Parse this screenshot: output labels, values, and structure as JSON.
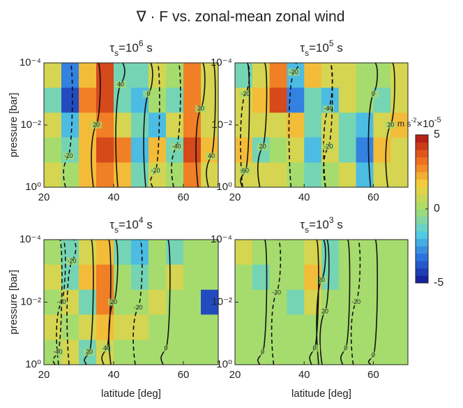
{
  "title": "∇ · F vs. zonal-mean zonal wind",
  "chart_data": [
    {
      "type": "heatmap",
      "title": {
        "symbol": "τ",
        "sub": "s",
        "text": "=10",
        "sup": "6",
        "unit": " s"
      },
      "ylabel": "pressure [bar]",
      "xlim": [
        20,
        70
      ],
      "xticks": [
        20,
        40,
        60
      ],
      "ylim": [
        1,
        0.0001
      ],
      "ylog": true,
      "yticks": [
        {
          "value": 0.0001,
          "label": "10⁻⁴"
        },
        {
          "value": 0.01,
          "label": "10⁻²"
        },
        {
          "value": 1,
          "label": "10⁰"
        }
      ],
      "x_edges": [
        20,
        25,
        30,
        35,
        40,
        45,
        50,
        55,
        60,
        65,
        70
      ],
      "y_edges": [
        0.0001,
        0.00063,
        0.004,
        0.025,
        0.16,
        1
      ],
      "z": [
        [
          1,
          -3,
          2,
          4,
          -1,
          -1,
          1,
          0,
          3,
          1
        ],
        [
          -1,
          -4,
          3,
          4,
          -1,
          -2,
          0,
          -1,
          3,
          1
        ],
        [
          1,
          -2,
          2,
          3,
          1,
          -1,
          -2,
          1,
          3,
          1
        ],
        [
          0,
          -1,
          2,
          4,
          3,
          -2,
          2,
          -1,
          4,
          2
        ],
        [
          1,
          0,
          2,
          3,
          2,
          -1,
          1,
          0,
          3,
          1
        ]
      ],
      "contours": [
        {
          "level": -20,
          "lat": 27,
          "p": 0.1
        },
        {
          "level": 20,
          "lat": 35,
          "p": 0.01
        },
        {
          "level": 40,
          "lat": 42,
          "p": 0.0005
        },
        {
          "level": 0,
          "lat": 50,
          "p": 0.001
        },
        {
          "level": -20,
          "lat": 52,
          "p": 0.3
        },
        {
          "level": -40,
          "lat": 58,
          "p": 0.05
        },
        {
          "level": 20,
          "lat": 65,
          "p": 0.003
        },
        {
          "level": 40,
          "lat": 68,
          "p": 0.1
        }
      ]
    },
    {
      "type": "heatmap",
      "title": {
        "symbol": "τ",
        "sub": "s",
        "text": "=10",
        "sup": "5",
        "unit": " s"
      },
      "xlim": [
        20,
        70
      ],
      "xticks": [
        20,
        40,
        60
      ],
      "ylim": [
        1,
        0.0001
      ],
      "ylog": true,
      "yticks": [
        {
          "value": 0.0001,
          "label": "10⁻⁴"
        },
        {
          "value": 0.01,
          "label": "10⁻²"
        },
        {
          "value": 1,
          "label": "10⁰"
        }
      ],
      "x_edges": [
        20,
        25,
        30,
        35,
        40,
        45,
        50,
        55,
        60,
        65,
        70
      ],
      "y_edges": [
        0.0001,
        0.00063,
        0.004,
        0.025,
        0.16,
        1
      ],
      "z": [
        [
          -1,
          1,
          3,
          -2,
          2,
          1,
          1,
          0,
          0,
          1
        ],
        [
          1,
          2,
          4,
          -3,
          -1,
          -2,
          1,
          0,
          -1,
          1
        ],
        [
          1,
          1,
          1,
          2,
          -1,
          1,
          -1,
          -2,
          1,
          2
        ],
        [
          2,
          -1,
          0,
          1,
          -2,
          1,
          -1,
          -3,
          2,
          1
        ],
        [
          1,
          1,
          1,
          0,
          -1,
          0,
          1,
          -2,
          1,
          1
        ]
      ],
      "contours": [
        {
          "level": -20,
          "lat": 37,
          "p": 0.0002
        },
        {
          "level": -20,
          "lat": 23,
          "p": 0.001
        },
        {
          "level": 60,
          "lat": 23,
          "p": 0.3
        },
        {
          "level": 20,
          "lat": 28,
          "p": 0.05
        },
        {
          "level": -40,
          "lat": 47,
          "p": 0.003
        },
        {
          "level": -20,
          "lat": 47,
          "p": 0.05
        },
        {
          "level": 0,
          "lat": 60,
          "p": 0.001
        },
        {
          "level": 20,
          "lat": 65,
          "p": 0.01
        }
      ]
    },
    {
      "type": "heatmap",
      "title": {
        "symbol": "τ",
        "sub": "s",
        "text": "=10",
        "sup": "4",
        "unit": " s"
      },
      "ylabel": "pressure [bar]",
      "xlabel": "latitude [deg]",
      "xlim": [
        20,
        70
      ],
      "xticks": [
        20,
        40,
        60
      ],
      "ylim": [
        1,
        0.0001
      ],
      "ylog": true,
      "yticks": [
        {
          "value": 0.0001,
          "label": "10⁻⁴"
        },
        {
          "value": 0.01,
          "label": "10⁻²"
        },
        {
          "value": 1,
          "label": "10⁰"
        }
      ],
      "x_edges": [
        20,
        25,
        30,
        35,
        40,
        45,
        50,
        55,
        60,
        65,
        70
      ],
      "y_edges": [
        0.0001,
        0.00063,
        0.004,
        0.025,
        0.16,
        1
      ],
      "z": [
        [
          0,
          -1,
          1,
          2,
          -1,
          -2,
          0,
          -1,
          0,
          0
        ],
        [
          1,
          -1,
          2,
          3,
          0,
          -1,
          0,
          1,
          0,
          0
        ],
        [
          0,
          1,
          -1,
          3,
          0,
          0,
          1,
          0,
          0,
          -4
        ],
        [
          1,
          0,
          1,
          2,
          1,
          1,
          0,
          0,
          0,
          0
        ],
        [
          0,
          1,
          -1,
          1,
          0,
          0,
          0,
          0,
          0,
          0
        ]
      ],
      "contours": [
        {
          "level": -20,
          "lat": 28,
          "p": 0.0005
        },
        {
          "level": -40,
          "lat": 25,
          "p": 0.01
        },
        {
          "level": -40,
          "lat": 24,
          "p": 0.4
        },
        {
          "level": 20,
          "lat": 33,
          "p": 0.4
        },
        {
          "level": 40,
          "lat": 38,
          "p": 0.3
        },
        {
          "level": 20,
          "lat": 40,
          "p": 0.01
        },
        {
          "level": -20,
          "lat": 47,
          "p": 0.015
        },
        {
          "level": 0,
          "lat": 55,
          "p": 0.3
        }
      ]
    },
    {
      "type": "heatmap",
      "title": {
        "symbol": "τ",
        "sub": "s",
        "text": "=10",
        "sup": "3",
        "unit": " s"
      },
      "xlabel": "latitude [deg]",
      "xlim": [
        20,
        70
      ],
      "xticks": [
        20,
        40,
        60
      ],
      "ylim": [
        1,
        0.0001
      ],
      "ylog": true,
      "yticks": [
        {
          "value": 0.0001,
          "label": "10⁻⁴"
        },
        {
          "value": 0.01,
          "label": "10⁻²"
        },
        {
          "value": 1,
          "label": "10⁰"
        }
      ],
      "x_edges": [
        20,
        25,
        30,
        35,
        40,
        45,
        50,
        55,
        60,
        65,
        70
      ],
      "y_edges": [
        0.0001,
        0.00063,
        0.004,
        0.025,
        0.16,
        1
      ],
      "z": [
        [
          1,
          0,
          0,
          0,
          1,
          -1,
          0,
          0,
          0,
          0
        ],
        [
          0,
          -1,
          0,
          0,
          2,
          -1,
          0,
          0,
          0,
          0
        ],
        [
          0,
          0,
          0,
          -1,
          1,
          0,
          0,
          0,
          0,
          0
        ],
        [
          0,
          0,
          0,
          0,
          0,
          0,
          0,
          0,
          0,
          0
        ],
        [
          0,
          0,
          0,
          0,
          0,
          0,
          0,
          0,
          0,
          0
        ]
      ],
      "contours": [
        {
          "level": -20,
          "lat": 32,
          "p": 0.005
        },
        {
          "level": 20,
          "lat": 45,
          "p": 0.002
        },
        {
          "level": 20,
          "lat": 46,
          "p": 0.02
        },
        {
          "level": 0,
          "lat": 28,
          "p": 0.4
        },
        {
          "level": 0,
          "lat": 43,
          "p": 0.3
        },
        {
          "level": 0,
          "lat": 52,
          "p": 0.3
        },
        {
          "level": -20,
          "lat": 55,
          "p": 0.01
        },
        {
          "level": 0,
          "lat": 60,
          "p": 0.5
        }
      ]
    }
  ],
  "colorbar": {
    "unit": "m s",
    "unit_exp": "-2",
    "factor": "×10",
    "factor_exp": "-5",
    "clim": [
      -5,
      5
    ],
    "ticks": [
      -5,
      0,
      5
    ],
    "colors": [
      "#16168f",
      "#2b6ee0",
      "#54cfe3",
      "#a6dc6e",
      "#f4d03e",
      "#ef6b1f",
      "#ad1515"
    ]
  }
}
